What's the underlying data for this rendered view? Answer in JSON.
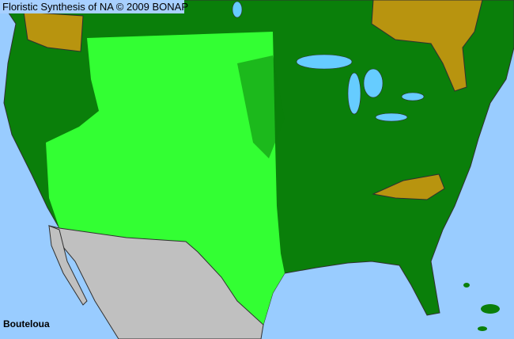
{
  "header": {
    "title": "Floristic Synthesis of NA © 2009 BONAP"
  },
  "map": {
    "taxon": "Bouteloua",
    "colors": {
      "water": "#99ccff",
      "present_in_state": "#0a7f0a",
      "present_in_county": "#33ff33",
      "absent_in_state": "#b8940f",
      "outside_range": "#c0c0c0",
      "borders": "#404040"
    }
  }
}
